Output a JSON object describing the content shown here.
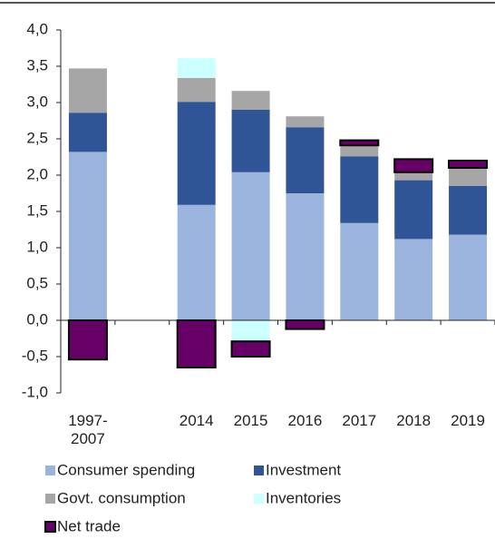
{
  "chart_data": {
    "type": "bar",
    "stacked": true,
    "categories": [
      "1997-\n2007",
      null,
      "2014",
      "2015",
      "2016",
      "2017",
      "2018",
      "2019"
    ],
    "series": [
      {
        "name": "Consumer spending",
        "color": "#9bb4de",
        "values": [
          2.32,
          null,
          1.59,
          2.04,
          1.75,
          1.34,
          1.12,
          1.18
        ]
      },
      {
        "name": "Investment",
        "color": "#2f5597",
        "values": [
          0.54,
          null,
          1.42,
          0.86,
          0.91,
          0.92,
          0.81,
          0.67
        ]
      },
      {
        "name": "Govt. consumption",
        "color": "#a6a6a6",
        "values": [
          0.61,
          null,
          0.33,
          0.26,
          0.15,
          0.15,
          0.11,
          0.25
        ]
      },
      {
        "name": "Inventories",
        "color": "#ccffff",
        "values": [
          null,
          null,
          0.27,
          -0.29,
          null,
          null,
          null,
          null
        ]
      },
      {
        "name": "Net trade",
        "color": "#660066",
        "values": [
          -0.54,
          null,
          -0.65,
          -0.21,
          -0.12,
          0.07,
          0.18,
          0.1
        ]
      }
    ],
    "ylim": [
      -1,
      4
    ],
    "yticks": [
      {
        "value": -1,
        "label": "-1,0"
      },
      {
        "value": -0.5,
        "label": "-0,5"
      },
      {
        "value": 0,
        "label": "0,0"
      },
      {
        "value": 0.5,
        "label": "0,5"
      },
      {
        "value": 1,
        "label": "1,0"
      },
      {
        "value": 1.5,
        "label": "1,5"
      },
      {
        "value": 2,
        "label": "2,0"
      },
      {
        "value": 2.5,
        "label": "2,5"
      },
      {
        "value": 3,
        "label": "3,0"
      },
      {
        "value": 3.5,
        "label": "3,5"
      },
      {
        "value": 4,
        "label": "4,0"
      }
    ],
    "grid": false
  }
}
